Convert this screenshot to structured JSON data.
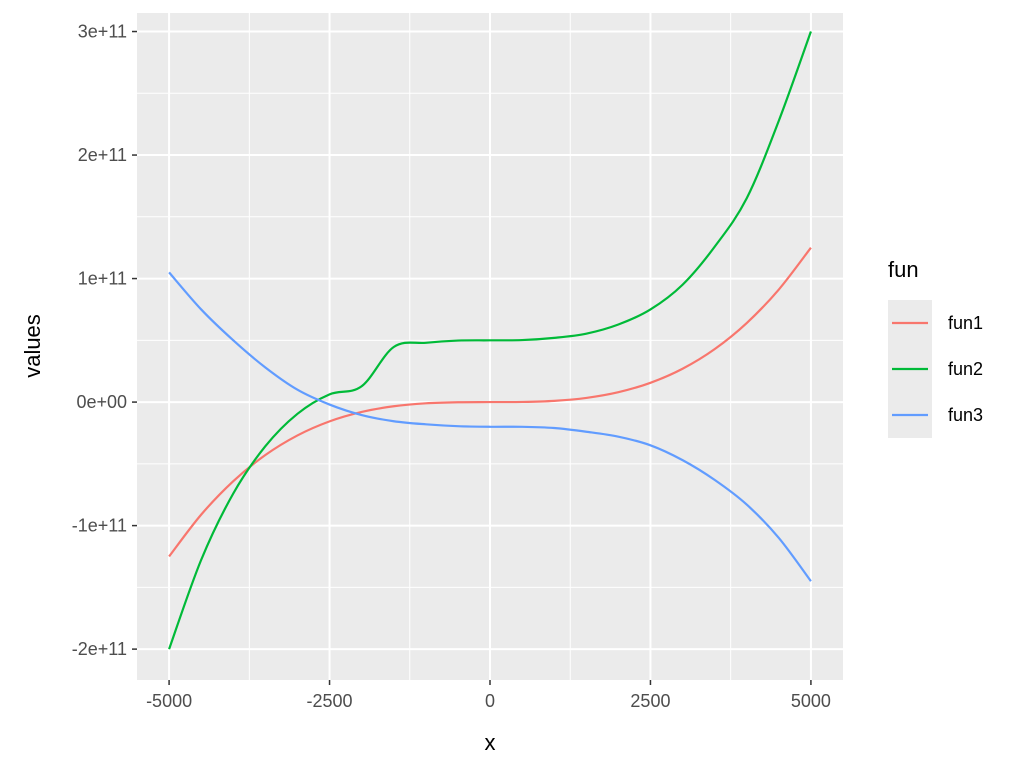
{
  "chart_data": {
    "type": "line",
    "xlabel": "x",
    "ylabel": "values",
    "xlim": [
      -5500,
      5500
    ],
    "ylim": [
      -225000000000.0,
      315000000000.0
    ],
    "x_ticks": [
      {
        "value": -5000,
        "label": "-5000"
      },
      {
        "value": -2500,
        "label": "-2500"
      },
      {
        "value": 0,
        "label": "0"
      },
      {
        "value": 2500,
        "label": "2500"
      },
      {
        "value": 5000,
        "label": "5000"
      }
    ],
    "y_ticks": [
      {
        "value": -200000000000.0,
        "label": "-2e+11"
      },
      {
        "value": -100000000000.0,
        "label": "-1e+11"
      },
      {
        "value": 0,
        "label": "0e+00"
      },
      {
        "value": 100000000000.0,
        "label": "1e+11"
      },
      {
        "value": 200000000000.0,
        "label": "2e+11"
      },
      {
        "value": 300000000000.0,
        "label": "3e+11"
      }
    ],
    "grid": true,
    "legend": {
      "title": "fun",
      "position": "right"
    },
    "x": [
      -5000,
      -4500,
      -4000,
      -3500,
      -3000,
      -2500,
      -2000,
      -1500,
      -1000,
      -500,
      0,
      500,
      1000,
      1500,
      2000,
      2500,
      3000,
      3500,
      4000,
      4500,
      5000
    ],
    "series": [
      {
        "name": "fun1",
        "color": "#F8766D",
        "values": [
          -125000000000.0,
          -91125000000.0,
          -64000000000.0,
          -42875000000.0,
          -27000000000.0,
          -15625000000.0,
          -8000000000.0,
          -3375000000.0,
          -1000000000.0,
          -125000000.0,
          0,
          125000000.0,
          1000000000.0,
          3375000000.0,
          8000000000.0,
          15625000000.0,
          27000000000.0,
          42875000000.0,
          64000000000.0,
          91125000000.0,
          125000000000.0
        ]
      },
      {
        "name": "fun2",
        "color": "#00BA38",
        "values": [
          -200000000000.0,
          -127750000000.0,
          -74000000000.0,
          -35750000000.0,
          -9500000000.0,
          6250000000.0,
          12800000000.0,
          44600000000.0,
          48000000000.0,
          49800000000.0,
          50000000000.0,
          50200000000.0,
          52000000000.0,
          55400000000.0,
          62800000000.0,
          75000000000.0,
          95000000000.0,
          125750000000.0,
          165000000000.0,
          227750000000.0,
          300000000000.0
        ]
      },
      {
        "name": "fun3",
        "color": "#619CFF",
        "values": [
          105000000000.0,
          75000000000.0,
          50000000000.0,
          28000000000.0,
          10000000000.0,
          -2000000000.0,
          -10500000000.0,
          -15500000000.0,
          -18000000000.0,
          -19500000000.0,
          -20000000000.0,
          -20000000000.0,
          -21000000000.0,
          -24000000000.0,
          -28000000000.0,
          -35000000000.0,
          -47000000000.0,
          -63000000000.0,
          -83000000000.0,
          -110000000000.0,
          -145000000000.0
        ]
      }
    ]
  }
}
